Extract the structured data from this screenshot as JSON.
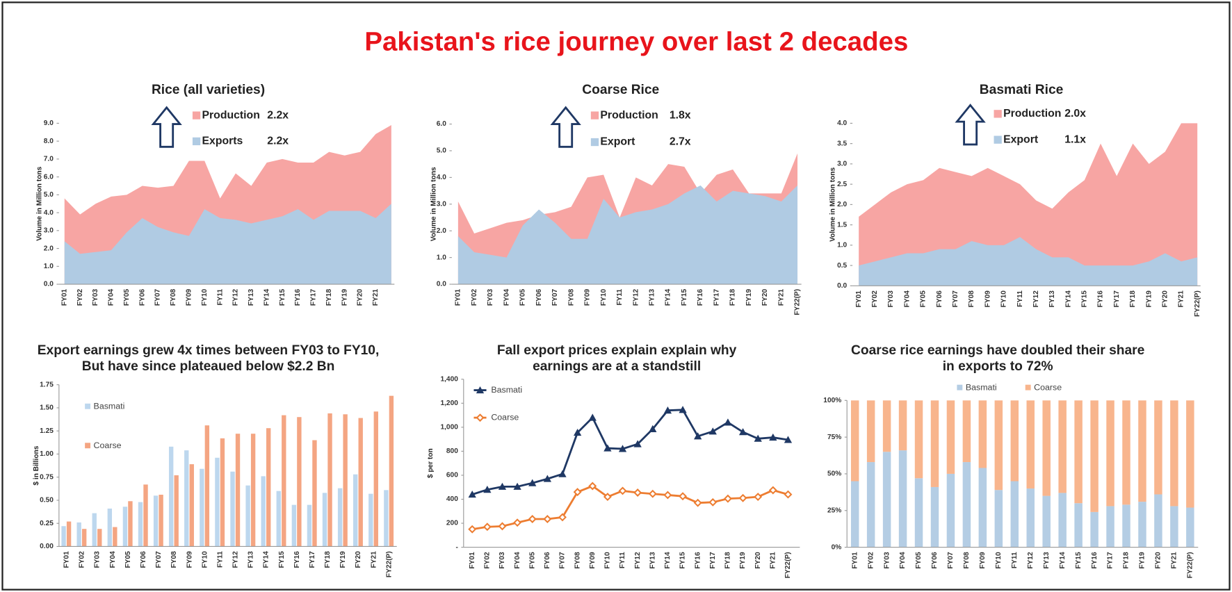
{
  "title": "Pakistan's rice journey over last 2 decades",
  "chart_data": [
    {
      "type": "area",
      "title": "Rice (all varieties)",
      "ylabel": "Volume in Million tons",
      "categories": [
        "FY01",
        "FY02",
        "FY03",
        "FY04",
        "FY05",
        "FY06",
        "FY07",
        "FY08",
        "FY09",
        "FY10",
        "FY11",
        "FY12",
        "FY13",
        "FY14",
        "FY15",
        "FY16",
        "FY17",
        "FY18",
        "FY19",
        "FY20",
        "FY21",
        null
      ],
      "ylim": [
        0,
        9
      ],
      "yticks": [
        {
          "value": 0,
          "label": "0.0"
        },
        {
          "value": 1,
          "label": "1.0"
        },
        {
          "value": 2,
          "label": "2.0"
        },
        {
          "value": 3,
          "label": "3.0"
        },
        {
          "value": 4,
          "label": "4.0"
        },
        {
          "value": 5,
          "label": "5.0"
        },
        {
          "value": 6,
          "label": "6.0"
        },
        {
          "value": 7,
          "label": "7.0"
        },
        {
          "value": 8,
          "label": "8.0"
        },
        {
          "value": 9,
          "label": "9.0"
        }
      ],
      "series": [
        {
          "name": "Production",
          "growth": "2.2x",
          "color": "#f7a5a3",
          "values": [
            4.8,
            3.9,
            4.5,
            4.9,
            5.0,
            5.5,
            5.4,
            5.5,
            6.9,
            6.9,
            4.8,
            6.2,
            5.5,
            6.8,
            7.0,
            6.8,
            6.8,
            7.4,
            7.2,
            7.4,
            8.4,
            8.9
          ]
        },
        {
          "name": "Exports",
          "growth": "2.2x",
          "color": "#b0cbe3",
          "values": [
            2.4,
            1.7,
            1.8,
            1.9,
            2.9,
            3.7,
            3.2,
            2.9,
            2.7,
            4.2,
            3.7,
            3.6,
            3.4,
            3.6,
            3.8,
            4.2,
            3.6,
            4.1,
            4.1,
            4.1,
            3.7,
            4.5
          ]
        }
      ]
    },
    {
      "type": "area",
      "title": "Coarse Rice",
      "ylabel": "Volume in Million tons",
      "categories": [
        "FY01",
        "FY02",
        "FY03",
        "FY04",
        "FY05",
        "FY06",
        "FY07",
        "FY08",
        "FY09",
        "FY10",
        "FY11",
        "FY12",
        "FY13",
        "FY14",
        "FY15",
        "FY16",
        "FY17",
        "FY18",
        "FY19",
        "FY20",
        "FY21",
        "FY22(P)"
      ],
      "ylim": [
        0,
        6
      ],
      "yticks": [
        {
          "value": 0,
          "label": "0.0"
        },
        {
          "value": 1,
          "label": "1.0"
        },
        {
          "value": 2,
          "label": "2.0"
        },
        {
          "value": 3,
          "label": "3.0"
        },
        {
          "value": 4,
          "label": "4.0"
        },
        {
          "value": 5,
          "label": "5.0"
        },
        {
          "value": 6,
          "label": "6.0"
        }
      ],
      "series": [
        {
          "name": "Production",
          "growth": "1.8x",
          "color": "#f7a5a3",
          "values": [
            3.1,
            1.9,
            2.1,
            2.3,
            2.4,
            2.6,
            2.7,
            2.9,
            4.0,
            4.1,
            2.5,
            4.0,
            3.7,
            4.5,
            4.4,
            3.4,
            4.1,
            4.3,
            3.4,
            3.4,
            3.4,
            4.9
          ]
        },
        {
          "name": "Export",
          "growth": "2.7x",
          "color": "#b0cbe3",
          "values": [
            1.8,
            1.2,
            1.1,
            1.0,
            2.2,
            2.8,
            2.3,
            1.7,
            1.7,
            3.2,
            2.5,
            2.7,
            2.8,
            3.0,
            3.4,
            3.7,
            3.1,
            3.5,
            3.4,
            3.3,
            3.1,
            3.7
          ]
        }
      ]
    },
    {
      "type": "area",
      "title": "Basmati Rice",
      "ylabel": "Volume in Million tons",
      "categories": [
        "FY01",
        "FY02",
        "FY03",
        "FY04",
        "FY05",
        "FY06",
        "FY07",
        "FY08",
        "FY09",
        "FY10",
        "FY11",
        "FY12",
        "FY13",
        "FY14",
        "FY15",
        "FY16",
        "FY17",
        "FY18",
        "FY19",
        "FY20",
        "FY21",
        "FY22(P)"
      ],
      "ylim": [
        0,
        4
      ],
      "yticks": [
        {
          "value": 0,
          "label": "0.0"
        },
        {
          "value": 0.5,
          "label": "0.5"
        },
        {
          "value": 1,
          "label": "1.0"
        },
        {
          "value": 1.5,
          "label": "1.5"
        },
        {
          "value": 2,
          "label": "2.0"
        },
        {
          "value": 2.5,
          "label": "2.5"
        },
        {
          "value": 3,
          "label": "3.0"
        },
        {
          "value": 3.5,
          "label": "3.5"
        },
        {
          "value": 4,
          "label": "4.0"
        }
      ],
      "series": [
        {
          "name": "Production",
          "growth": "2.0x",
          "color": "#f7a5a3",
          "values": [
            1.7,
            2.0,
            2.3,
            2.5,
            2.6,
            2.9,
            2.8,
            2.7,
            2.9,
            2.7,
            2.5,
            2.1,
            1.9,
            2.3,
            2.6,
            3.5,
            2.7,
            3.5,
            3.0,
            3.3,
            4.0,
            4.0
          ]
        },
        {
          "name": "Export",
          "growth": "1.1x",
          "color": "#b0cbe3",
          "values": [
            0.5,
            0.6,
            0.7,
            0.8,
            0.8,
            0.9,
            0.9,
            1.1,
            1.0,
            1.0,
            1.2,
            0.9,
            0.7,
            0.7,
            0.5,
            0.5,
            0.5,
            0.5,
            0.6,
            0.8,
            0.6,
            0.7
          ]
        }
      ]
    },
    {
      "type": "bar",
      "title": [
        "Export earnings grew 4x times between FY03 to FY10,",
        "But have since plateaued below $2.2 Bn"
      ],
      "ylabel": "$ in Billions",
      "categories": [
        "FY01",
        "FY02",
        "FY03",
        "FY04",
        "FY05",
        "FY06",
        "FY07",
        "FY08",
        "FY09",
        "FY10",
        "FY11",
        "FY12",
        "FY13",
        "FY14",
        "FY15",
        "FY16",
        "FY17",
        "FY18",
        "FY19",
        "FY20",
        "FY21",
        "FY22(P)"
      ],
      "ylim": [
        0,
        1.75
      ],
      "yticks": [
        {
          "value": 0,
          "label": "0.00"
        },
        {
          "value": 0.25,
          "label": "0.25"
        },
        {
          "value": 0.5,
          "label": "0.50"
        },
        {
          "value": 0.75,
          "label": "0.75"
        },
        {
          "value": 1,
          "label": "1.00"
        },
        {
          "value": 1.25,
          "label": "1.25"
        },
        {
          "value": 1.5,
          "label": "1.50"
        },
        {
          "value": 1.75,
          "label": "1.75"
        }
      ],
      "series": [
        {
          "name": "Basmati",
          "color": "#bdd7ee",
          "values": [
            0.22,
            0.26,
            0.36,
            0.41,
            0.43,
            0.48,
            0.55,
            1.08,
            1.04,
            0.84,
            0.96,
            0.81,
            0.66,
            0.76,
            0.6,
            0.45,
            0.45,
            0.58,
            0.63,
            0.78,
            0.57,
            0.61
          ]
        },
        {
          "name": "Coarse",
          "color": "#f4a582",
          "values": [
            0.27,
            0.19,
            0.19,
            0.21,
            0.49,
            0.67,
            0.56,
            0.77,
            0.89,
            1.31,
            1.17,
            1.22,
            1.22,
            1.28,
            1.42,
            1.4,
            1.15,
            1.44,
            1.43,
            1.39,
            1.46,
            1.63
          ]
        }
      ]
    },
    {
      "type": "line",
      "title": [
        "Fall export prices explain explain why",
        "earnings are at a standstill"
      ],
      "ylabel": "$ per ton",
      "categories": [
        "FY01",
        "FY02",
        "FY03",
        "FY04",
        "FY05",
        "FY06",
        "FY07",
        "FY08",
        "FY09",
        "FY10",
        "FY11",
        "FY12",
        "FY13",
        "FY14",
        "FY15",
        "FY16",
        "FY17",
        "FY18",
        "FY19",
        "FY20",
        "FY21",
        "FY22(P)"
      ],
      "ylim": [
        0,
        1400
      ],
      "yticks": [
        {
          "value": 0,
          "label": "-"
        },
        200,
        400,
        600,
        800,
        {
          "value": 1000,
          "label": "1,000"
        },
        {
          "value": 1200,
          "label": "1,200"
        },
        {
          "value": 1400,
          "label": "1,400"
        }
      ],
      "series": [
        {
          "name": "Basmati",
          "color": "#1f3864",
          "marker": "triangle",
          "values": [
            440,
            480,
            505,
            505,
            535,
            570,
            610,
            955,
            1080,
            825,
            820,
            860,
            985,
            1140,
            1145,
            925,
            965,
            1040,
            960,
            905,
            915,
            895
          ]
        },
        {
          "name": "Coarse",
          "color": "#ed7d31",
          "marker": "diamond",
          "values": [
            150,
            170,
            175,
            205,
            235,
            235,
            250,
            460,
            510,
            420,
            470,
            455,
            445,
            435,
            425,
            370,
            375,
            405,
            410,
            420,
            475,
            440
          ]
        }
      ]
    },
    {
      "type": "stacked",
      "title": [
        "Coarse rice earnings have doubled their share",
        "in exports to 72%"
      ],
      "categories": [
        "FY01",
        "FY02",
        "FY03",
        "FY04",
        "FY05",
        "FY06",
        "FY07",
        "FY08",
        "FY09",
        "FY10",
        "FY11",
        "FY12",
        "FY13",
        "FY14",
        "FY15",
        "FY16",
        "FY17",
        "FY18",
        "FY19",
        "FY20",
        "FY21",
        "FY22(P)"
      ],
      "ylim": [
        0,
        100
      ],
      "yticks": [
        {
          "value": 0,
          "label": "0%"
        },
        {
          "value": 25,
          "label": "25%"
        },
        {
          "value": 50,
          "label": "50%"
        },
        {
          "value": 75,
          "label": "75%"
        },
        {
          "value": 100,
          "label": "100%"
        }
      ],
      "series": [
        {
          "name": "Basmati",
          "color": "#b4cde4",
          "values": [
            45,
            58,
            65,
            66,
            47,
            41,
            50,
            58,
            54,
            39,
            45,
            40,
            35,
            37,
            30,
            24,
            28,
            29,
            31,
            36,
            28,
            27
          ]
        },
        {
          "name": "Coarse",
          "color": "#f8b58d",
          "values": [
            55,
            42,
            35,
            34,
            53,
            59,
            50,
            42,
            46,
            61,
            55,
            60,
            65,
            63,
            70,
            76,
            72,
            71,
            69,
            64,
            72,
            73
          ]
        }
      ]
    }
  ]
}
